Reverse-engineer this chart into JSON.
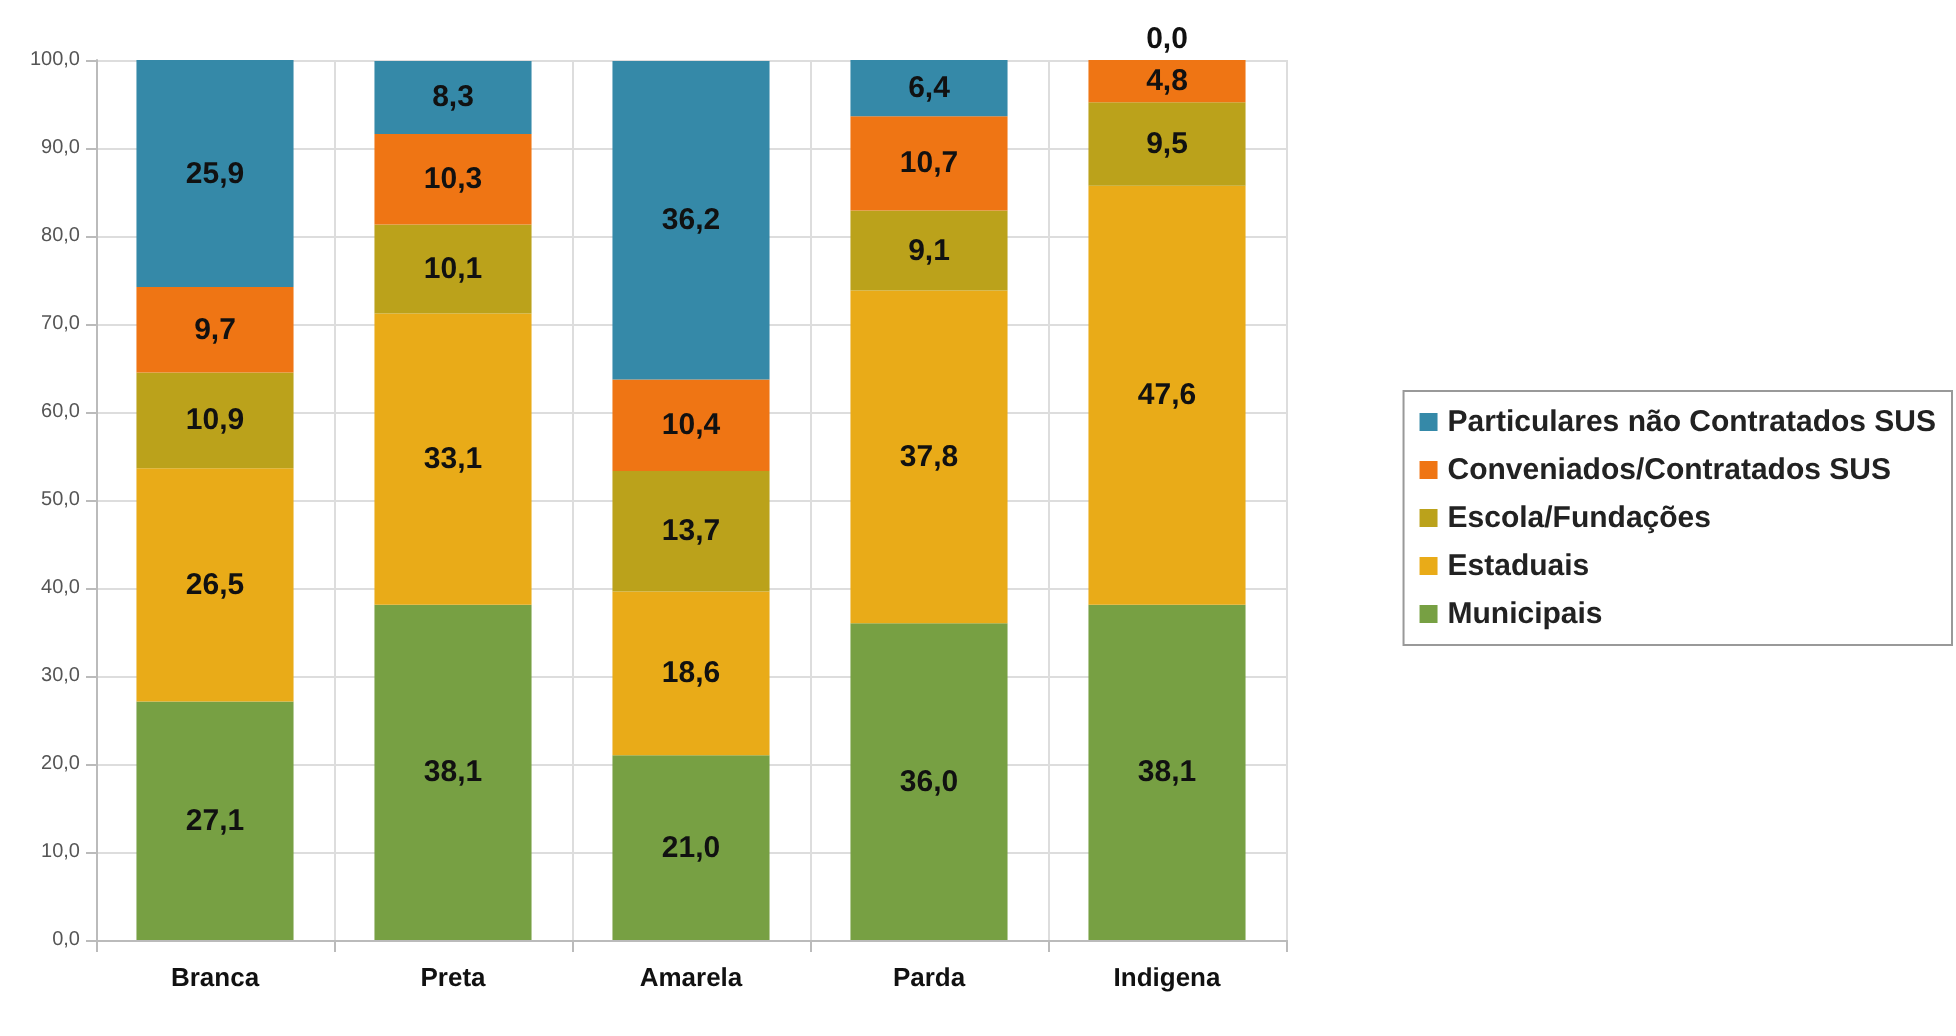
{
  "chart_data": {
    "type": "bar",
    "stacked": true,
    "categories": [
      "Branca",
      "Preta",
      "Amarela",
      "Parda",
      "Indigena"
    ],
    "series": [
      {
        "name": "Municipais",
        "color": "#77a043",
        "values": [
          27.1,
          38.1,
          21.0,
          36.0,
          38.1
        ],
        "value_labels": [
          "27,1",
          "38,1",
          "21,0",
          "36,0",
          "38,1"
        ]
      },
      {
        "name": "Estaduais",
        "color": "#e9ab18",
        "values": [
          26.5,
          33.1,
          18.6,
          37.8,
          47.6
        ],
        "value_labels": [
          "26,5",
          "33,1",
          "18,6",
          "37,8",
          "47,6"
        ]
      },
      {
        "name": "Escola/Fundações",
        "color": "#bba21b",
        "values": [
          10.9,
          10.1,
          13.7,
          9.1,
          9.5
        ],
        "value_labels": [
          "10,9",
          "10,1",
          "13,7",
          "9,1",
          "9,5"
        ]
      },
      {
        "name": "Conveniados/Contratados SUS",
        "color": "#ef7514",
        "values": [
          9.7,
          10.3,
          10.4,
          10.7,
          4.8
        ],
        "value_labels": [
          "9,7",
          "10,3",
          "10,4",
          "10,7",
          "4,8"
        ]
      },
      {
        "name": "Particulares não Contratados SUS",
        "color": "#3589a8",
        "values": [
          25.9,
          8.3,
          36.2,
          6.4,
          0.0
        ],
        "value_labels": [
          "25,9",
          "8,3",
          "36,2",
          "6,4",
          "0,0"
        ]
      }
    ],
    "ylim": [
      0,
      100
    ],
    "yticks": [
      {
        "value": 0,
        "label": "0,0"
      },
      {
        "value": 10,
        "label": "10,0"
      },
      {
        "value": 20,
        "label": "20,0"
      },
      {
        "value": 30,
        "label": "30,0"
      },
      {
        "value": 40,
        "label": "40,0"
      },
      {
        "value": 50,
        "label": "50,0"
      },
      {
        "value": 60,
        "label": "60,0"
      },
      {
        "value": 70,
        "label": "70,0"
      },
      {
        "value": 80,
        "label": "80,0"
      },
      {
        "value": 90,
        "label": "90,0"
      },
      {
        "value": 100,
        "label": "100,0"
      }
    ],
    "grid": true,
    "legend": "right"
  }
}
